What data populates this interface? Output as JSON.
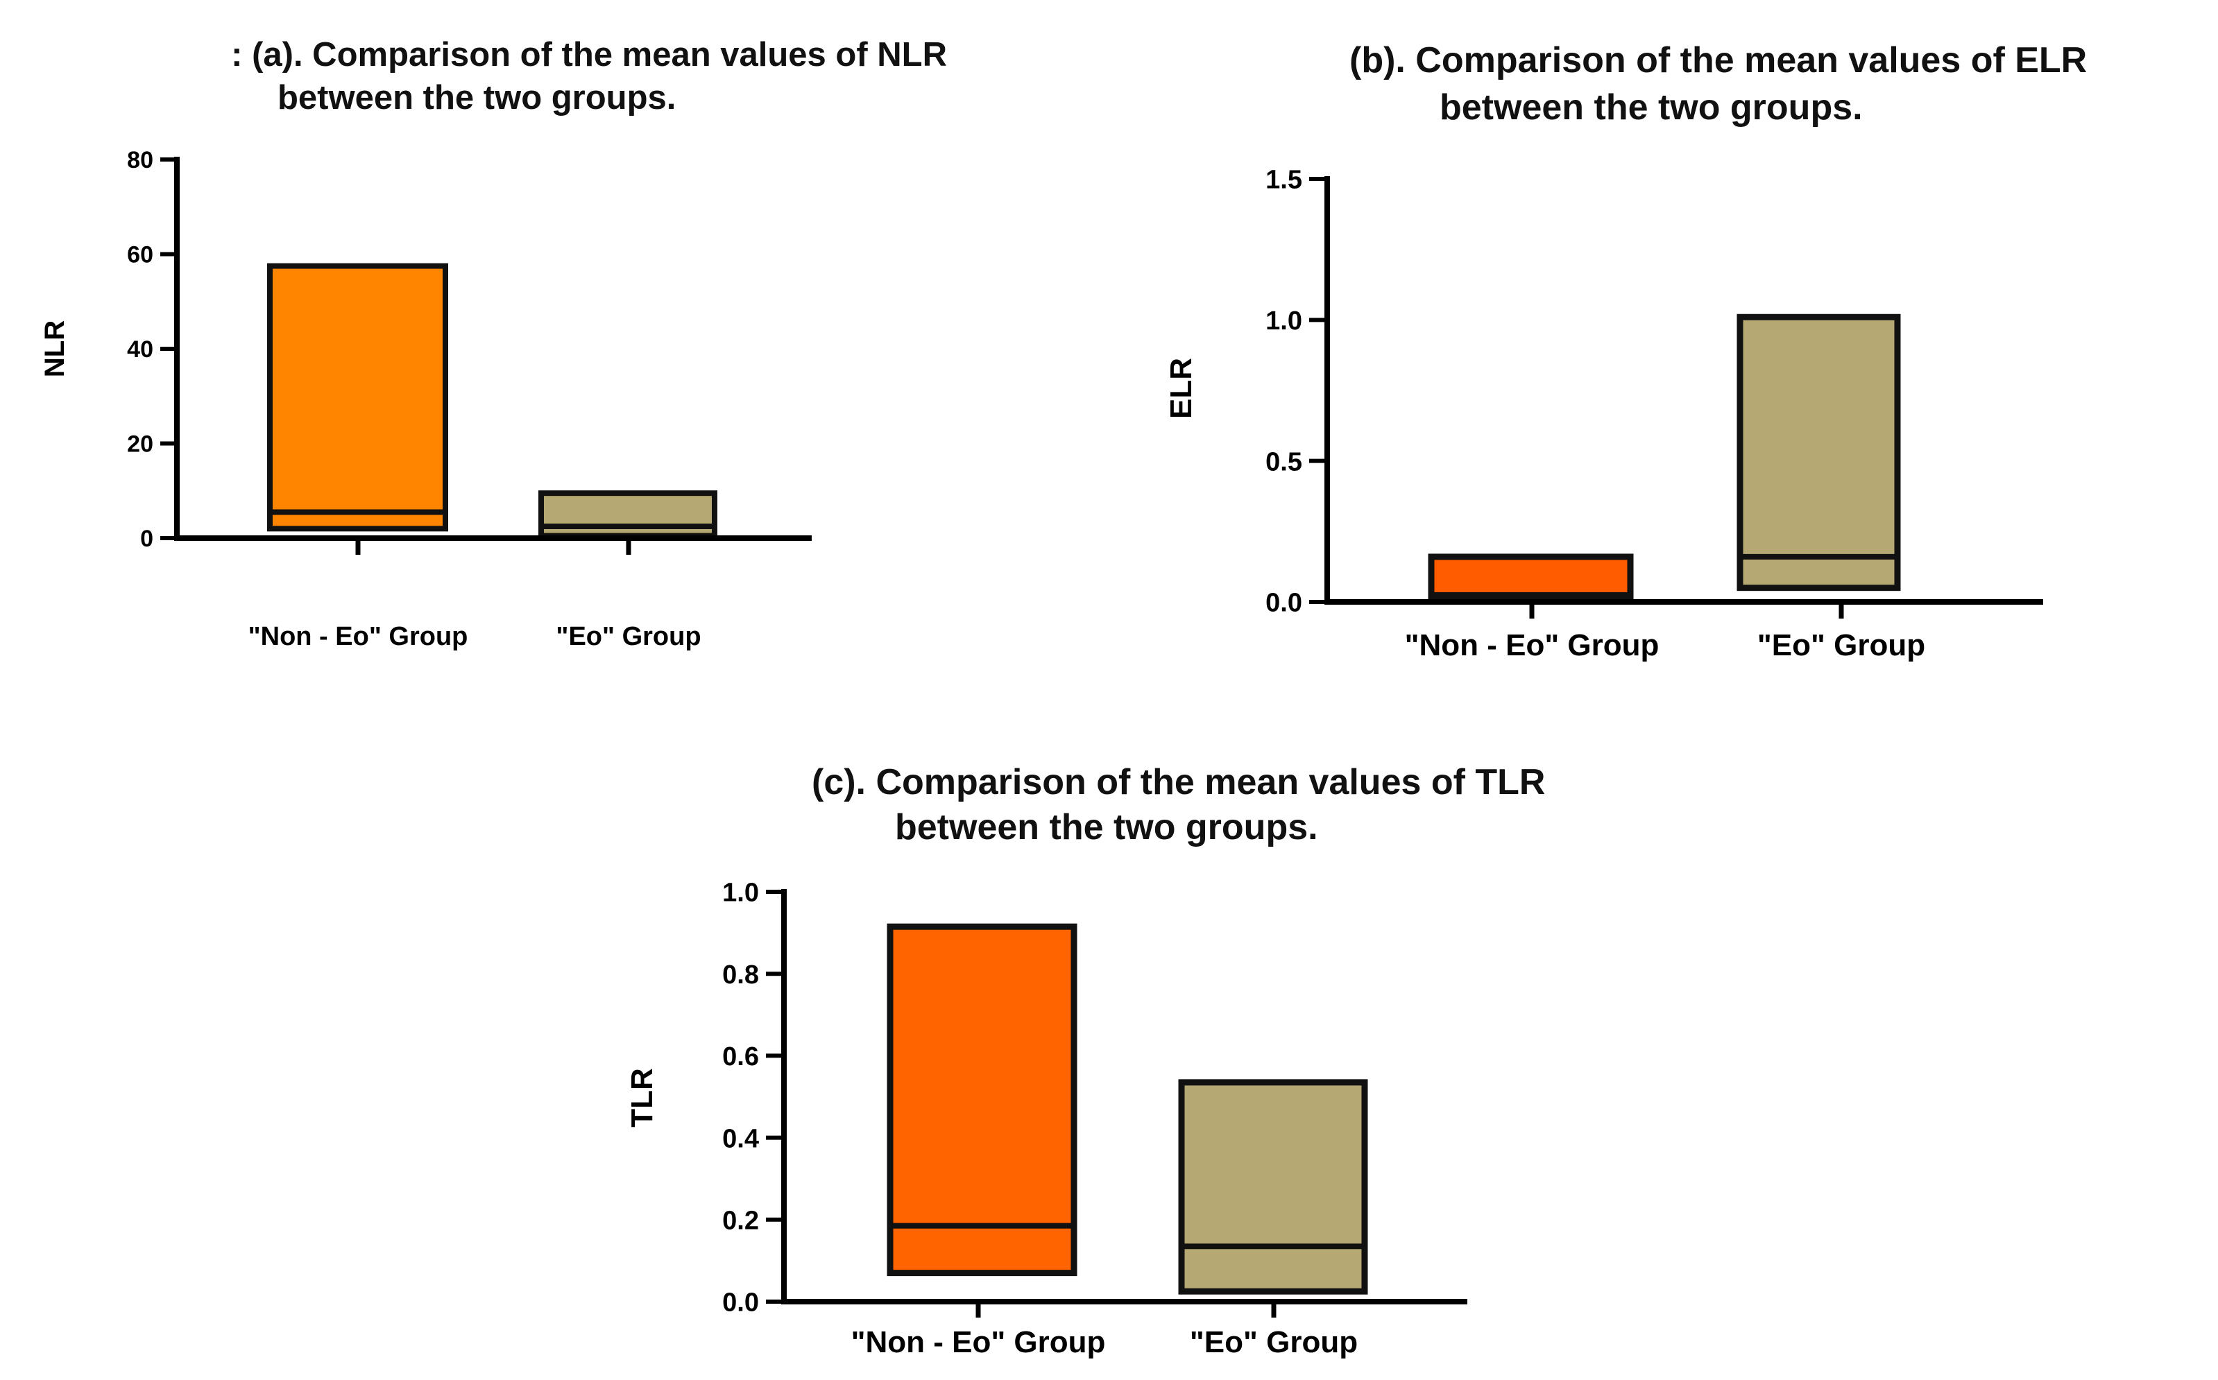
{
  "chart_data": [
    {
      "type": "bar",
      "subtype": "floating-bar-min-max-with-mean-line",
      "title_lines": [
        ": (a). Comparison of the mean values of NLR",
        "between the two groups."
      ],
      "xlabel": "",
      "ylabel": "NLR",
      "ylim": [
        0,
        80
      ],
      "yticks": [
        "0",
        "20",
        "40",
        "60",
        "80"
      ],
      "ytick_values": [
        0,
        20,
        40,
        60,
        80
      ],
      "categories": [
        "\"Non - Eo\" Group",
        "\"Eo\" Group"
      ],
      "series": [
        {
          "name": "min",
          "values": [
            2,
            0.5
          ]
        },
        {
          "name": "max",
          "values": [
            57.5,
            9.5
          ]
        },
        {
          "name": "mean",
          "values": [
            5.5,
            2.5
          ]
        }
      ],
      "colors": [
        "#ff8400",
        "#b5a872"
      ],
      "grid": false,
      "legend": "none"
    },
    {
      "type": "bar",
      "subtype": "floating-bar-min-max-with-mean-line",
      "title_lines": [
        "(b). Comparison of the mean values of ELR",
        "between the two groups."
      ],
      "xlabel": "",
      "ylabel": "ELR",
      "ylim": [
        0,
        1.5
      ],
      "yticks": [
        "0.0",
        "0.5",
        "1.0",
        "1.5"
      ],
      "ytick_values": [
        0,
        0.5,
        1.0,
        1.5
      ],
      "categories": [
        "\"Non - Eo\" Group",
        "\"Eo\" Group"
      ],
      "series": [
        {
          "name": "min",
          "values": [
            0.005,
            0.05
          ]
        },
        {
          "name": "max",
          "values": [
            0.16,
            1.01
          ]
        },
        {
          "name": "mean",
          "values": [
            0.025,
            0.16
          ]
        }
      ],
      "colors": [
        "#ff5c00",
        "#b5a872"
      ],
      "grid": false,
      "legend": "none"
    },
    {
      "type": "bar",
      "subtype": "floating-bar-min-max-with-mean-line",
      "title_lines": [
        "(c). Comparison of the mean values of TLR",
        "between the two groups."
      ],
      "xlabel": "",
      "ylabel": "TLR",
      "ylim": [
        0,
        1.0
      ],
      "yticks": [
        "0.0",
        "0.2",
        "0.4",
        "0.6",
        "0.8",
        "1.0"
      ],
      "ytick_values": [
        0,
        0.2,
        0.4,
        0.6,
        0.8,
        1.0
      ],
      "categories": [
        "\"Non - Eo\" Group",
        "\"Eo\" Group"
      ],
      "series": [
        {
          "name": "min",
          "values": [
            0.07,
            0.025
          ]
        },
        {
          "name": "max",
          "values": [
            0.915,
            0.535
          ]
        },
        {
          "name": "mean",
          "values": [
            0.185,
            0.135
          ]
        }
      ],
      "colors": [
        "#ff6400",
        "#b5a872"
      ],
      "grid": false,
      "legend": "none"
    }
  ]
}
